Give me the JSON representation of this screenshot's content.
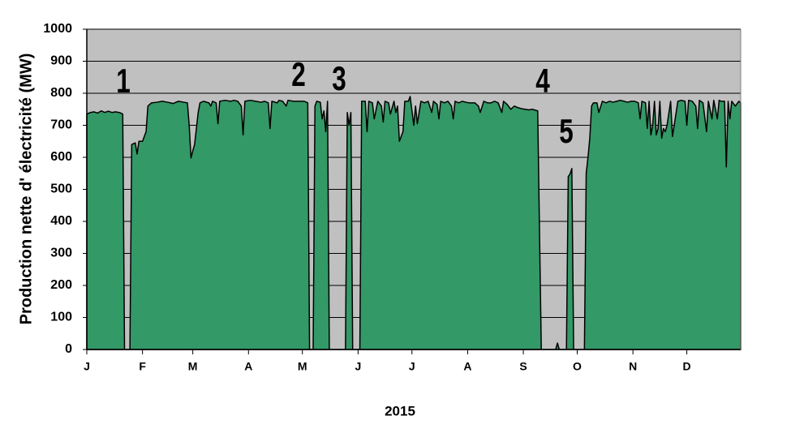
{
  "chart_data": {
    "type": "area",
    "x_label": "2015",
    "y_label": "Production nette d' électricité (MW)",
    "color": "#339966",
    "background": "#c0c0c0",
    "grid": true,
    "xlim": [
      1,
      365
    ],
    "xticks": [
      {
        "value": 1,
        "label": "J"
      },
      {
        "value": 32,
        "label": "F"
      },
      {
        "value": 60,
        "label": "M"
      },
      {
        "value": 91,
        "label": "A"
      },
      {
        "value": 121,
        "label": "M"
      },
      {
        "value": 152,
        "label": "J"
      },
      {
        "value": 182,
        "label": "J"
      },
      {
        "value": 213,
        "label": "A"
      },
      {
        "value": 244,
        "label": "S"
      },
      {
        "value": 274,
        "label": "O"
      },
      {
        "value": 305,
        "label": "N"
      },
      {
        "value": 335,
        "label": "D"
      }
    ],
    "ylim": [
      0,
      1000
    ],
    "yticks": [
      0,
      100,
      200,
      300,
      400,
      500,
      600,
      700,
      800,
      900,
      1000
    ],
    "annotations": [
      "1",
      "2",
      "3",
      "4",
      "5"
    ],
    "x": [
      1,
      3,
      5,
      7,
      9,
      11,
      13,
      15,
      17,
      19,
      20,
      21,
      22,
      25,
      26,
      28,
      29,
      30,
      32,
      34,
      35,
      37,
      40,
      43,
      46,
      49,
      52,
      55,
      57,
      58,
      59,
      60,
      61,
      63,
      64,
      66,
      69,
      70,
      71,
      73,
      74,
      75,
      78,
      81,
      83,
      85,
      87,
      88,
      89,
      92,
      95,
      98,
      100,
      102,
      103,
      104,
      107,
      108,
      110,
      112,
      113,
      116,
      119,
      122,
      124,
      125,
      127,
      128,
      129,
      131,
      132,
      133,
      134,
      135,
      136,
      145,
      146,
      147,
      148,
      149,
      151,
      153,
      154,
      156,
      157,
      158,
      160,
      161,
      163,
      165,
      166,
      167,
      169,
      170,
      172,
      173,
      174,
      175,
      177,
      178,
      180,
      181,
      183,
      184,
      185,
      187,
      189,
      191,
      193,
      194,
      196,
      197,
      198,
      200,
      202,
      204,
      205,
      206,
      208,
      210,
      212,
      214,
      217,
      219,
      220,
      222,
      224,
      226,
      228,
      230,
      232,
      233,
      235,
      237,
      239,
      241,
      243,
      245,
      247,
      249,
      252,
      254,
      262,
      263,
      264,
      268,
      269,
      270,
      271,
      272,
      278,
      279,
      280,
      281,
      282,
      283,
      285,
      286,
      288,
      290,
      292,
      294,
      296,
      298,
      300,
      302,
      304,
      306,
      308,
      309,
      310,
      312,
      313,
      314,
      315,
      316,
      317,
      318,
      319,
      320,
      321,
      322,
      323,
      324,
      326,
      327,
      328,
      330,
      332,
      334,
      335,
      336,
      338,
      340,
      341,
      342,
      344,
      346,
      347,
      349,
      350,
      352,
      353,
      354,
      356,
      357,
      358,
      359,
      360,
      362,
      364,
      365
    ],
    "values": [
      735,
      740,
      742,
      738,
      745,
      740,
      744,
      740,
      742,
      740,
      738,
      735,
      0,
      0,
      640,
      645,
      610,
      650,
      650,
      680,
      760,
      770,
      772,
      775,
      772,
      768,
      775,
      772,
      770,
      700,
      598,
      620,
      640,
      740,
      770,
      775,
      770,
      760,
      775,
      770,
      705,
      775,
      778,
      775,
      778,
      775,
      760,
      670,
      775,
      778,
      775,
      772,
      775,
      770,
      690,
      775,
      770,
      778,
      775,
      760,
      778,
      775,
      775,
      775,
      770,
      0,
      0,
      760,
      775,
      772,
      720,
      745,
      680,
      775,
      0,
      0,
      740,
      700,
      740,
      0,
      0,
      0,
      775,
      775,
      680,
      775,
      770,
      720,
      775,
      760,
      710,
      775,
      770,
      735,
      775,
      740,
      760,
      650,
      680,
      775,
      775,
      790,
      700,
      760,
      705,
      775,
      770,
      775,
      740,
      775,
      765,
      720,
      775,
      770,
      775,
      760,
      720,
      775,
      770,
      775,
      772,
      770,
      770,
      760,
      740,
      775,
      770,
      770,
      775,
      770,
      740,
      775,
      765,
      750,
      760,
      755,
      752,
      750,
      748,
      750,
      745,
      0,
      0,
      20,
      0,
      0,
      540,
      548,
      565,
      0,
      0,
      550,
      600,
      660,
      760,
      770,
      770,
      740,
      775,
      770,
      775,
      772,
      775,
      778,
      775,
      772,
      775,
      775,
      770,
      720,
      775,
      770,
      690,
      775,
      670,
      700,
      775,
      670,
      690,
      775,
      660,
      690,
      680,
      700,
      775,
      665,
      700,
      775,
      778,
      775,
      700,
      778,
      775,
      760,
      690,
      778,
      770,
      680,
      775,
      720,
      778,
      720,
      778,
      775,
      775,
      570,
      775,
      720,
      775,
      760,
      775,
      770
    ]
  }
}
